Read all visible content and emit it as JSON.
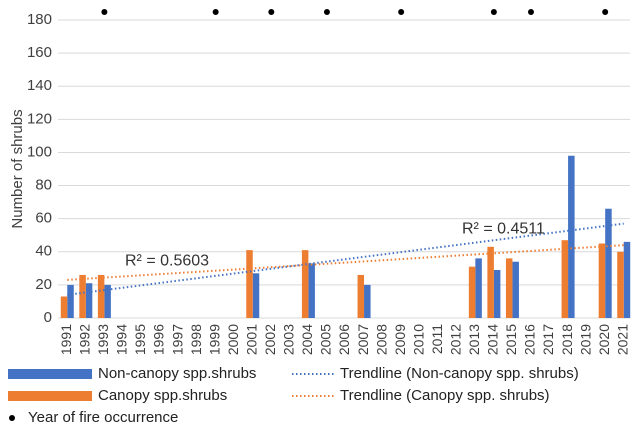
{
  "chart_data": {
    "type": "bar",
    "y_label": "Number of shrubs",
    "categories": [
      "1991",
      "1992",
      "1993",
      "1994",
      "1995",
      "1996",
      "1997",
      "1998",
      "1999",
      "2000",
      "2001",
      "2002",
      "2003",
      "2004",
      "2005",
      "2006",
      "2007",
      "2008",
      "2009",
      "2010",
      "2011",
      "2012",
      "2013",
      "2014",
      "2015",
      "2016",
      "2017",
      "2018",
      "2019",
      "2020",
      "2021"
    ],
    "series": [
      {
        "name": "Non-canopy spp.shrubs",
        "color": "#4472c4",
        "values": [
          20,
          21,
          20,
          0,
          0,
          0,
          0,
          0,
          0,
          0,
          27,
          0,
          0,
          33,
          0,
          0,
          20,
          0,
          0,
          0,
          0,
          0,
          36,
          29,
          34,
          0,
          0,
          98,
          0,
          66,
          46
        ]
      },
      {
        "name": "Canopy spp.shrubs",
        "color": "#ed7d31",
        "values": [
          13,
          26,
          26,
          0,
          0,
          0,
          0,
          0,
          0,
          0,
          41,
          0,
          0,
          41,
          0,
          0,
          26,
          0,
          0,
          0,
          0,
          0,
          31,
          43,
          36,
          0,
          0,
          47,
          0,
          45,
          40
        ]
      }
    ],
    "trendlines": [
      {
        "name": "Trendline (Non-canopy spp. shrubs)",
        "color": "#4472c4",
        "values": [
          14,
          57
        ],
        "annotation": "R² = 0.4511"
      },
      {
        "name": "Trendline (Canopy spp. shrubs)",
        "color": "#ed7d31",
        "values": [
          23,
          44
        ],
        "annotation": "R² = 0.5603"
      }
    ],
    "fire": {
      "name": "Year of fire occurrence",
      "color": "#000000",
      "values": [
        null,
        null,
        180,
        null,
        null,
        null,
        null,
        null,
        180,
        null,
        null,
        180,
        null,
        null,
        180,
        null,
        null,
        null,
        180,
        null,
        null,
        null,
        null,
        180,
        null,
        180,
        null,
        null,
        null,
        180,
        null
      ]
    },
    "ylim": [
      0,
      180
    ],
    "yticks": [
      0,
      20,
      40,
      60,
      80,
      100,
      120,
      140,
      160,
      180
    ],
    "grid": true
  }
}
